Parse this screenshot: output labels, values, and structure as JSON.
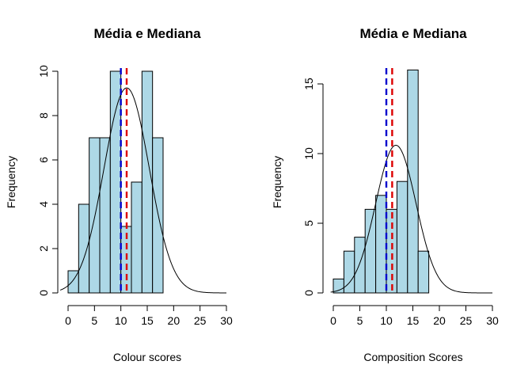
{
  "chart_data": [
    {
      "type": "bar",
      "title": "Média e Mediana",
      "xlabel": "Colour scores",
      "ylabel": "Frequency",
      "xlim": [
        0,
        30
      ],
      "ylim": [
        0,
        10
      ],
      "xticks": [
        0,
        5,
        10,
        15,
        20,
        25,
        30
      ],
      "yticks": [
        0,
        2,
        4,
        6,
        8,
        10
      ],
      "bin_width": 2,
      "bins": [
        {
          "x0": 0,
          "x1": 2,
          "count": 1
        },
        {
          "x0": 2,
          "x1": 4,
          "count": 4
        },
        {
          "x0": 4,
          "x1": 6,
          "count": 7
        },
        {
          "x0": 6,
          "x1": 8,
          "count": 7
        },
        {
          "x0": 8,
          "x1": 10,
          "count": 10
        },
        {
          "x0": 10,
          "x1": 12,
          "count": 3
        },
        {
          "x0": 12,
          "x1": 14,
          "count": 5
        },
        {
          "x0": 14,
          "x1": 16,
          "count": 10
        },
        {
          "x0": 16,
          "x1": 18,
          "count": 7
        }
      ],
      "density_curve": {
        "mean": 11.1,
        "sd": 4.3,
        "peak": 9.25
      },
      "vlines": [
        {
          "x": 10,
          "color": "#0000cd",
          "style": "dashed"
        },
        {
          "x": 11.1,
          "color": "#dd0000",
          "style": "dashed"
        }
      ],
      "bar_color": "#add8e6"
    },
    {
      "type": "bar",
      "title": "Média e Mediana",
      "xlabel": "Composition Scores",
      "ylabel": "Frequency",
      "xlim": [
        0,
        30
      ],
      "ylim": [
        0,
        16
      ],
      "xticks": [
        0,
        5,
        10,
        15,
        20,
        25,
        30
      ],
      "yticks": [
        0,
        5,
        10,
        15
      ],
      "bin_width": 2,
      "bins": [
        {
          "x0": 0,
          "x1": 2,
          "count": 1
        },
        {
          "x0": 2,
          "x1": 4,
          "count": 3
        },
        {
          "x0": 4,
          "x1": 6,
          "count": 4
        },
        {
          "x0": 6,
          "x1": 8,
          "count": 6
        },
        {
          "x0": 8,
          "x1": 10,
          "count": 7
        },
        {
          "x0": 10,
          "x1": 12,
          "count": 6
        },
        {
          "x0": 12,
          "x1": 14,
          "count": 8
        },
        {
          "x0": 14,
          "x1": 16,
          "count": 16
        },
        {
          "x0": 16,
          "x1": 18,
          "count": 3
        }
      ],
      "density_curve": {
        "mean": 11.8,
        "sd": 3.8,
        "peak": 10.6
      },
      "vlines": [
        {
          "x": 10,
          "color": "#0000cd",
          "style": "dashed"
        },
        {
          "x": 11.1,
          "color": "#dd0000",
          "style": "dashed"
        }
      ],
      "bar_color": "#add8e6"
    }
  ]
}
